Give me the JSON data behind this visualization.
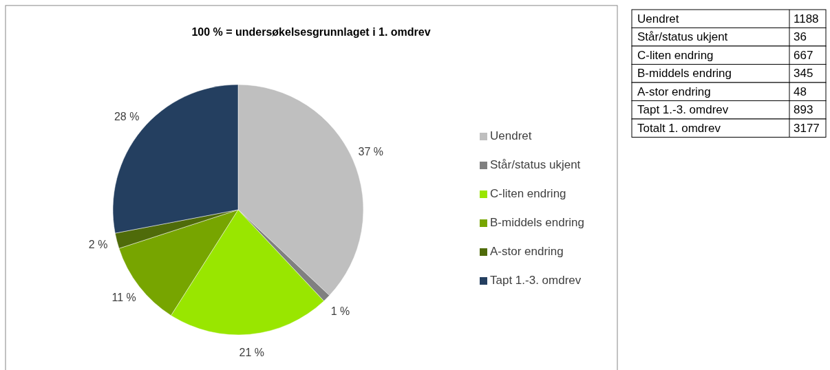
{
  "chart_data": {
    "type": "pie",
    "title": "100 % = undersøkelsesgrunnlaget i 1. omdrev",
    "categories": [
      "Uendret",
      "Står/status ukjent",
      "C-liten endring",
      "B-middels endring",
      "A-stor endring",
      "Tapt 1.-3. omdrev"
    ],
    "values": [
      37,
      1,
      21,
      11,
      2,
      28
    ],
    "value_labels": [
      "37 %",
      "1 %",
      "21 %",
      "11 %",
      "2 %",
      "28 %"
    ],
    "colors": [
      "#bfbfbf",
      "#808080",
      "#99e600",
      "#77a500",
      "#4f6b0a",
      "#243f60"
    ],
    "legend": "right",
    "annotations": [
      "1188",
      "36",
      "667",
      "345",
      "48",
      "893",
      "Totalt 1. omdrev",
      "3177"
    ]
  }
}
